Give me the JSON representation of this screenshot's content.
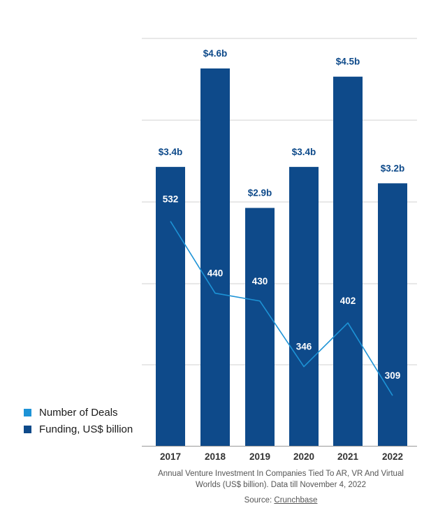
{
  "chart_data": {
    "type": "bar",
    "categories": [
      "2017",
      "2018",
      "2019",
      "2020",
      "2021",
      "2022"
    ],
    "series": [
      {
        "name": "Funding, US$ billion",
        "type": "bar",
        "values": [
          3.4,
          4.6,
          2.9,
          3.4,
          4.5,
          3.2
        ],
        "labels": [
          "$3.4b",
          "$4.6b",
          "$2.9b",
          "$3.4b",
          "$4.5b",
          "$3.2b"
        ],
        "color": "#0e4a8a"
      },
      {
        "name": "Number of Deals",
        "type": "line",
        "values": [
          532,
          440,
          430,
          346,
          402,
          309
        ],
        "labels": [
          "532",
          "440",
          "430",
          "346",
          "402",
          "309"
        ],
        "color": "#1d93d6"
      }
    ],
    "caption": "Annual Venture Investment In Companies Tied To AR, VR And Virtual Worlds (US$ billion). Data till November 4, 2022",
    "source_prefix": "Source: ",
    "source_link": "Crunchbase",
    "grid": true,
    "legend_position": "bottom-left"
  },
  "legend": [
    {
      "label": "Number of Deals",
      "color": "#1d93d6"
    },
    {
      "label": "Funding, US$ billion",
      "color": "#0e4a8a"
    }
  ],
  "colors": {
    "bar": "#0e4a8a",
    "line": "#1d93d6",
    "grid": "#d0d0d0",
    "axis_text": "#333333"
  }
}
